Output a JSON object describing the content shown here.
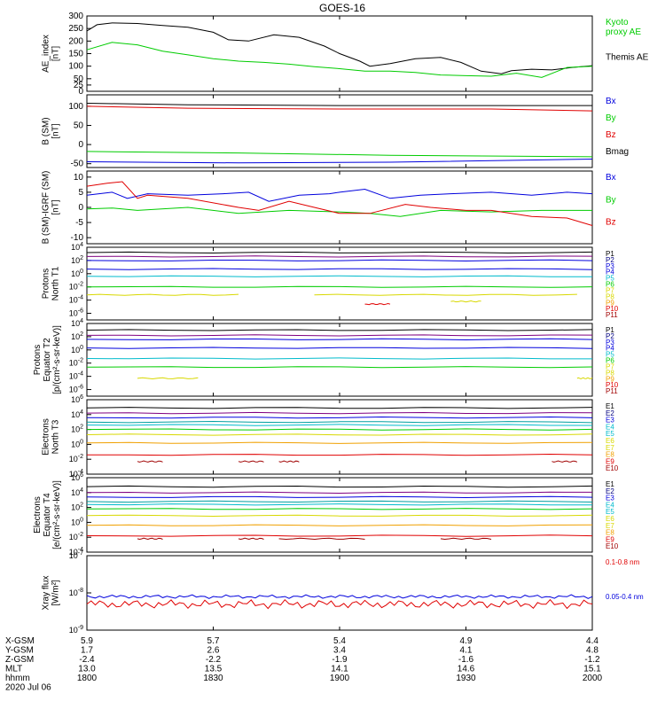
{
  "title": "GOES-16",
  "colors": {
    "black": "#000000",
    "red": "#e00000",
    "green": "#00cc00",
    "blue": "#0000dd",
    "navy": "#000080",
    "purple": "#800080",
    "cyan": "#00bbcc",
    "teal": "#00a0a0",
    "yellow": "#d8d800",
    "orange": "#f0a000",
    "darkred": "#a00000"
  },
  "time_axis": {
    "ticks": [
      "1800",
      "1830",
      "1900",
      "1930",
      "2000"
    ],
    "range": [
      "18:00",
      "20:00"
    ]
  },
  "ephemeris": {
    "rows": [
      {
        "label": "X-GSM",
        "values": [
          "5.9",
          "5.7",
          "5.4",
          "4.9",
          "4.4"
        ]
      },
      {
        "label": "Y-GSM",
        "values": [
          "1.7",
          "2.6",
          "3.4",
          "4.1",
          "4.8"
        ]
      },
      {
        "label": "Z-GSM",
        "values": [
          "-2.4",
          "-2.2",
          "-1.9",
          "-1.6",
          "-1.2"
        ]
      },
      {
        "label": "MLT",
        "values": [
          "13.0",
          "13.5",
          "14.1",
          "14.6",
          "15.1"
        ]
      },
      {
        "label": "hhmm",
        "values": [
          "1800",
          "1830",
          "1900",
          "1930",
          "2000"
        ]
      }
    ],
    "date": "2020 Jul 06"
  },
  "chart_data": [
    {
      "type": "line",
      "ylabel": [
        "AE_index",
        "[nT]"
      ],
      "ylim": [
        0,
        300
      ],
      "yticks": [
        "0",
        "25",
        "50",
        "100",
        "150",
        "200",
        "250",
        "300"
      ],
      "ytick_values": [
        0,
        25,
        50,
        100,
        150,
        200,
        250,
        300
      ],
      "legend": [
        [
          "Kyoto",
          "proxy AE"
        ],
        [
          "Themis AE"
        ]
      ],
      "legend_colors": [
        "green",
        "black"
      ],
      "series": [
        {
          "name": "Themis AE",
          "color": "black",
          "x": [
            0,
            0.02,
            0.05,
            0.1,
            0.15,
            0.2,
            0.25,
            0.28,
            0.32,
            0.37,
            0.42,
            0.47,
            0.5,
            0.54,
            0.56,
            0.6,
            0.65,
            0.7,
            0.74,
            0.78,
            0.82,
            0.84,
            0.88,
            0.92,
            0.96,
            1
          ],
          "y": [
            240,
            265,
            272,
            270,
            262,
            255,
            235,
            205,
            200,
            225,
            215,
            180,
            150,
            120,
            100,
            110,
            130,
            135,
            115,
            80,
            70,
            82,
            88,
            85,
            95,
            102
          ]
        },
        {
          "name": "Kyoto proxy AE",
          "color": "green",
          "x": [
            0,
            0.05,
            0.1,
            0.15,
            0.2,
            0.25,
            0.3,
            0.35,
            0.4,
            0.45,
            0.5,
            0.55,
            0.6,
            0.65,
            0.7,
            0.75,
            0.8,
            0.85,
            0.9,
            0.95,
            1
          ],
          "y": [
            165,
            195,
            185,
            160,
            145,
            130,
            120,
            115,
            108,
            98,
            90,
            80,
            80,
            75,
            65,
            62,
            60,
            72,
            55,
            95,
            100
          ]
        }
      ]
    },
    {
      "type": "line",
      "ylabel": [
        "B (SM)",
        "[nT]"
      ],
      "ylim": [
        -60,
        130
      ],
      "yticks": [
        "-50",
        "0",
        "50",
        "100"
      ],
      "ytick_values": [
        -50,
        0,
        50,
        100
      ],
      "legend": [
        [
          "Bx"
        ],
        [
          "By"
        ],
        [
          "Bz"
        ],
        [
          "Bmag"
        ]
      ],
      "legend_colors": [
        "blue",
        "green",
        "red",
        "black"
      ],
      "series": [
        {
          "name": "Bmag",
          "color": "black",
          "x": [
            0,
            0.2,
            0.5,
            0.8,
            1
          ],
          "y": [
            108,
            104,
            102,
            102,
            102
          ]
        },
        {
          "name": "Bz",
          "color": "red",
          "x": [
            0,
            0.2,
            0.5,
            0.8,
            1
          ],
          "y": [
            100,
            95,
            93,
            93,
            88
          ]
        },
        {
          "name": "By",
          "color": "green",
          "x": [
            0,
            0.3,
            0.6,
            1
          ],
          "y": [
            -18,
            -22,
            -28,
            -32
          ]
        },
        {
          "name": "Bx",
          "color": "blue",
          "x": [
            0,
            0.3,
            0.6,
            1
          ],
          "y": [
            -45,
            -48,
            -46,
            -38
          ]
        }
      ]
    },
    {
      "type": "line",
      "ylabel": [
        "B (SM)-IGRF (SM)",
        "[nT]"
      ],
      "ylim": [
        -12,
        12
      ],
      "yticks": [
        "-10",
        "-5",
        "0",
        "5",
        "10"
      ],
      "ytick_values": [
        -10,
        -5,
        0,
        5,
        10
      ],
      "legend": [
        [
          "Bx"
        ],
        [
          "By"
        ],
        [
          "Bz"
        ]
      ],
      "legend_colors": [
        "blue",
        "green",
        "red"
      ],
      "series": [
        {
          "name": "Bx",
          "color": "blue",
          "x": [
            0,
            0.05,
            0.08,
            0.12,
            0.2,
            0.27,
            0.32,
            0.36,
            0.42,
            0.48,
            0.5,
            0.55,
            0.6,
            0.66,
            0.72,
            0.8,
            0.88,
            0.95,
            1
          ],
          "y": [
            4,
            5,
            3,
            4.5,
            4,
            4.5,
            5,
            2,
            4,
            4.5,
            5,
            6,
            3,
            4,
            4.5,
            5,
            4,
            5,
            4.5
          ]
        },
        {
          "name": "By",
          "color": "green",
          "x": [
            0,
            0.05,
            0.1,
            0.2,
            0.3,
            0.4,
            0.5,
            0.56,
            0.62,
            0.7,
            0.8,
            0.9,
            1
          ],
          "y": [
            -0.5,
            -0.2,
            -1,
            0,
            -2,
            -1,
            -1.5,
            -2,
            -3,
            -1,
            -1.5,
            -1,
            -1
          ]
        },
        {
          "name": "Bz",
          "color": "red",
          "x": [
            0,
            0.04,
            0.07,
            0.1,
            0.12,
            0.2,
            0.3,
            0.34,
            0.4,
            0.45,
            0.5,
            0.56,
            0.63,
            0.68,
            0.75,
            0.8,
            0.88,
            0.95,
            1
          ],
          "y": [
            7,
            8,
            8.5,
            3,
            4,
            3,
            0,
            -1,
            2,
            0,
            -2,
            -2,
            1,
            0,
            -1,
            -1,
            -3,
            -3.5,
            -6
          ]
        }
      ]
    },
    {
      "type": "line",
      "log": true,
      "ylabel": [
        "Protons",
        "North T1"
      ],
      "ylim_exp": [
        -7,
        4
      ],
      "ytick_exps": [
        4,
        2,
        0,
        -2,
        -4,
        -6
      ],
      "legend": [
        [
          "P1"
        ],
        [
          "P2"
        ],
        [
          "P3"
        ],
        [
          "P4"
        ],
        [
          "P5"
        ],
        [
          "P6"
        ],
        [
          "P7"
        ],
        [
          "P8"
        ],
        [
          "P9"
        ],
        [
          "P10"
        ],
        [
          "P11"
        ]
      ],
      "legend_colors": [
        "black",
        "navy",
        "blue",
        "blue",
        "cyan",
        "green",
        "yellow",
        "yellow",
        "orange",
        "red",
        "darkred"
      ],
      "series": [
        {
          "name": "P1",
          "color": "black",
          "y": 3.2
        },
        {
          "name": "P2",
          "color": "purple",
          "y": 2.6
        },
        {
          "name": "P3",
          "color": "blue",
          "y": 2.0
        },
        {
          "name": "P4",
          "color": "blue",
          "y": 0.7
        },
        {
          "name": "P5",
          "color": "cyan",
          "y": -0.4
        },
        {
          "name": "P6",
          "color": "green",
          "y": -2.0
        },
        {
          "name": "P7",
          "color": "yellow",
          "y": -3.2,
          "segments": [
            [
              0,
              0.3
            ],
            [
              0.45,
              0.97
            ]
          ]
        },
        {
          "name": "P8",
          "color": "yellow",
          "y": -4.2,
          "segments": [
            [
              0.72,
              0.78
            ]
          ]
        },
        {
          "name": "P10",
          "color": "red",
          "y": -4.6,
          "segments": [
            [
              0.55,
              0.6
            ]
          ]
        }
      ]
    },
    {
      "type": "line",
      "log": true,
      "ylabel": [
        "Protons",
        "Equator T2",
        "[p/(cm²-s-sr-keV)]"
      ],
      "ylim_exp": [
        -7,
        4
      ],
      "ytick_exps": [
        4,
        2,
        0,
        -2,
        -4,
        -6
      ],
      "legend": [
        [
          "P1"
        ],
        [
          "P2"
        ],
        [
          "P3"
        ],
        [
          "P4"
        ],
        [
          "P5"
        ],
        [
          "P6"
        ],
        [
          "P7"
        ],
        [
          "P8"
        ],
        [
          "P9"
        ],
        [
          "P10"
        ],
        [
          "P11"
        ]
      ],
      "legend_colors": [
        "black",
        "navy",
        "blue",
        "blue",
        "cyan",
        "green",
        "yellow",
        "yellow",
        "orange",
        "red",
        "darkred"
      ],
      "series": [
        {
          "name": "P1",
          "color": "black",
          "y": 3.0
        },
        {
          "name": "P2",
          "color": "purple",
          "y": 2.2
        },
        {
          "name": "P3",
          "color": "blue",
          "y": 1.6
        },
        {
          "name": "P4",
          "color": "blue",
          "y": 0.3
        },
        {
          "name": "P5",
          "color": "cyan",
          "y": -1.3
        },
        {
          "name": "P6",
          "color": "green",
          "y": -2.6
        },
        {
          "name": "P7",
          "color": "yellow",
          "y": -4.3,
          "segments": [
            [
              0.1,
              0.22
            ],
            [
              0.97,
              1
            ]
          ]
        }
      ]
    },
    {
      "type": "line",
      "log": true,
      "ylabel": [
        "Electrons",
        "North T3"
      ],
      "ylim_exp": [
        -4,
        6
      ],
      "ytick_exps": [
        6,
        4,
        2,
        0,
        -2,
        -4
      ],
      "legend": [
        [
          "E1"
        ],
        [
          "E2"
        ],
        [
          "E3"
        ],
        [
          "E4"
        ],
        [
          "E5"
        ],
        [
          "E6"
        ],
        [
          "E7"
        ],
        [
          "E8"
        ],
        [
          "E9"
        ],
        [
          "E10"
        ]
      ],
      "legend_colors": [
        "black",
        "navy",
        "blue",
        "cyan",
        "cyan",
        "yellow",
        "yellow",
        "orange",
        "red",
        "darkred"
      ],
      "series": [
        {
          "name": "E1",
          "color": "black",
          "y": 4.9
        },
        {
          "name": "E2",
          "color": "purple",
          "y": 4.2
        },
        {
          "name": "E3",
          "color": "blue",
          "y": 3.6
        },
        {
          "name": "E4",
          "color": "teal",
          "y": 3.0
        },
        {
          "name": "E5",
          "color": "cyan",
          "y": 2.6
        },
        {
          "name": "E6",
          "color": "green",
          "y": 2.0
        },
        {
          "name": "E7",
          "color": "yellow",
          "y": 1.3
        },
        {
          "name": "E8",
          "color": "orange",
          "y": 0.2
        },
        {
          "name": "E9",
          "color": "red",
          "y": -1.4
        },
        {
          "name": "E10",
          "color": "darkred",
          "y": -2.3,
          "segments": [
            [
              0.1,
              0.15
            ],
            [
              0.3,
              0.35
            ],
            [
              0.38,
              0.42
            ],
            [
              0.92,
              0.97
            ]
          ]
        }
      ]
    },
    {
      "type": "line",
      "log": true,
      "ylabel": [
        "Electrons",
        "Equator T4",
        "[e/(cm²-s-sr-keV)]"
      ],
      "ylim_exp": [
        -4,
        6
      ],
      "ytick_exps": [
        6,
        4,
        2,
        0,
        -2,
        -4
      ],
      "legend": [
        [
          "E1"
        ],
        [
          "E2"
        ],
        [
          "E3"
        ],
        [
          "E4"
        ],
        [
          "E5"
        ],
        [
          "E6"
        ],
        [
          "E7"
        ],
        [
          "E8"
        ],
        [
          "E9"
        ],
        [
          "E10"
        ]
      ],
      "legend_colors": [
        "black",
        "navy",
        "blue",
        "cyan",
        "cyan",
        "yellow",
        "yellow",
        "orange",
        "red",
        "darkred"
      ],
      "series": [
        {
          "name": "E1",
          "color": "black",
          "y": 4.8
        },
        {
          "name": "E2",
          "color": "purple",
          "y": 4.0
        },
        {
          "name": "E3",
          "color": "blue",
          "y": 3.4
        },
        {
          "name": "E4",
          "color": "teal",
          "y": 2.8
        },
        {
          "name": "E5",
          "color": "cyan",
          "y": 2.4
        },
        {
          "name": "E6",
          "color": "green",
          "y": 1.8
        },
        {
          "name": "E7",
          "color": "yellow",
          "y": 0.9
        },
        {
          "name": "E8",
          "color": "orange",
          "y": -0.4
        },
        {
          "name": "E9",
          "color": "red",
          "y": -1.8
        },
        {
          "name": "E10",
          "color": "darkred",
          "y": -2.2,
          "segments": [
            [
              0.1,
              0.15
            ],
            [
              0.3,
              0.35
            ],
            [
              0.38,
              0.55
            ],
            [
              0.7,
              0.8
            ]
          ]
        }
      ]
    },
    {
      "type": "line",
      "log": true,
      "ylabel": [
        "Xray flux",
        "[W/m²]"
      ],
      "ylim_exp": [
        -9,
        -7
      ],
      "ytick_exps": [
        -7,
        -8,
        -9
      ],
      "legend": [
        [
          "0.1-0.8 nm"
        ],
        [
          "0.05-0.4 nm"
        ]
      ],
      "legend_colors": [
        "red",
        "blue"
      ],
      "series": [
        {
          "name": "0.1-0.8 nm",
          "color": "red",
          "base": -8.3,
          "amp": 0.12
        },
        {
          "name": "0.05-0.4 nm",
          "color": "blue",
          "base": -8.1,
          "amp": 0.05
        }
      ]
    }
  ]
}
